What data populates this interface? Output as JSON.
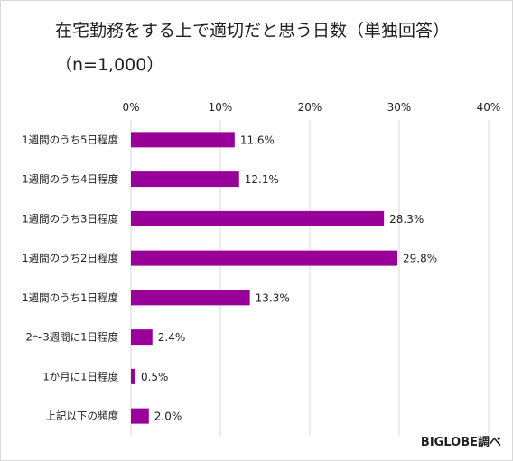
{
  "title": "在宅勤務をする上で適切だと思う日数（単独回答）",
  "subtitle": "（n=1,000）",
  "source": "BIGLOBE調べ",
  "colors": {
    "bar": "#990099",
    "grid": "#d9d9d9",
    "text": "#1f1f1f"
  },
  "chart_data": {
    "type": "bar",
    "orientation": "horizontal",
    "title": "在宅勤務をする上で適切だと思う日数（単独回答）",
    "subtitle": "（n=1,000）",
    "categories": [
      "1週間のうち5日程度",
      "1週間のうち4日程度",
      "1週間のうち3日程度",
      "1週間のうち2日程度",
      "1週間のうち1日程度",
      "2～3週間に1日程度",
      "1か月に1日程度",
      "上記以下の頻度"
    ],
    "values": [
      11.6,
      12.1,
      28.3,
      29.8,
      13.3,
      2.4,
      0.5,
      2.0
    ],
    "value_labels": [
      "11.6%",
      "12.1%",
      "28.3%",
      "29.8%",
      "13.3%",
      "2.4%",
      "0.5%",
      "2.0%"
    ],
    "xlim": [
      0,
      40
    ],
    "ticks": [
      0,
      10,
      20,
      30,
      40
    ],
    "tick_labels": [
      "0%",
      "10%",
      "20%",
      "30%",
      "40%"
    ],
    "axis_position": "top",
    "grid": true
  }
}
